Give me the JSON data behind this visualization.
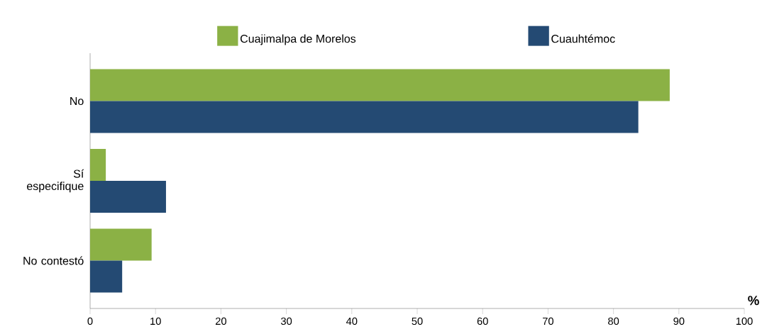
{
  "chart_data": {
    "type": "bar",
    "orientation": "horizontal",
    "xlabel": "%",
    "categories": [
      "No",
      "Sí especifique",
      "No contestó"
    ],
    "series": [
      {
        "name": "Cuajimalpa de Morelos",
        "color": "#8bb145",
        "values": [
          88.6,
          2.4,
          9.4
        ]
      },
      {
        "name": "Cuauhtémoc",
        "color": "#244a73",
        "values": [
          83.8,
          11.6,
          4.9
        ]
      }
    ],
    "xlim": [
      0,
      100
    ],
    "xticks": [
      0,
      10,
      20,
      30,
      40,
      50,
      60,
      70,
      80,
      90,
      100
    ],
    "grid": false,
    "legend": "top"
  }
}
